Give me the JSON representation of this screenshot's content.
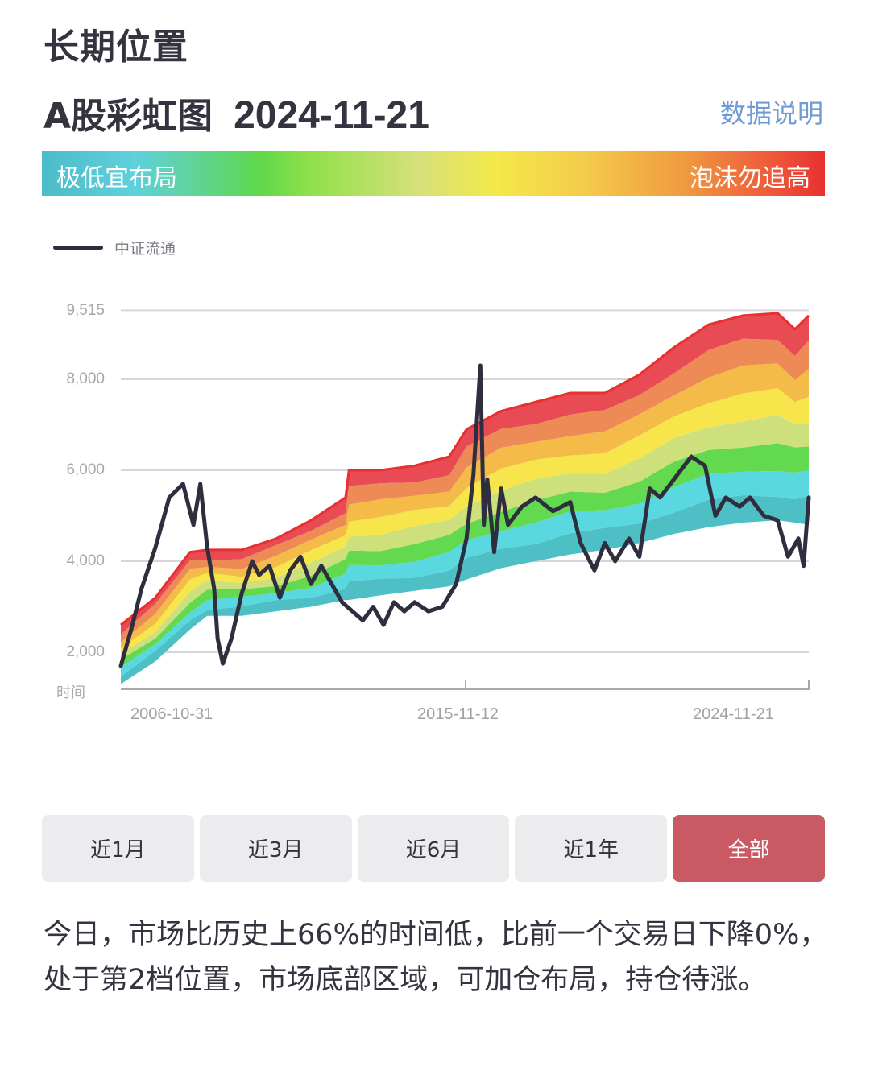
{
  "header": {
    "title": "长期位置",
    "subtitle": "A股彩虹图",
    "date": "2024-11-21",
    "data_link": "数据说明"
  },
  "gradient_bar": {
    "low_label": "极低宜布局",
    "high_label": "泡沫勿追高"
  },
  "legend": {
    "series_name": "中证流通",
    "line_color": "#2f2e3f"
  },
  "axis": {
    "y_ticks": [
      "9,515",
      "8,000",
      "6,000",
      "4,000",
      "2,000"
    ],
    "y_name": "时间",
    "x_ticks": [
      "2006-10-31",
      "2015-11-12",
      "2024-11-21"
    ]
  },
  "range_buttons": [
    {
      "label": "近1月",
      "active": false
    },
    {
      "label": "近3月",
      "active": false
    },
    {
      "label": "近6月",
      "active": false
    },
    {
      "label": "近1年",
      "active": false
    },
    {
      "label": "全部",
      "active": true
    }
  ],
  "summary": "今日，市场比历史上66%的时间低，比前一个交易日下降0%，处于第2档位置，市场底部区域，可加仓布局，持仓待涨。",
  "chart_data": {
    "type": "area",
    "title": "A股彩虹图 2024-11-21",
    "xlabel": "时间",
    "ylabel": "",
    "ylim": [
      1170,
      9515
    ],
    "y_ticks": [
      2000,
      4000,
      6000,
      8000,
      9515
    ],
    "x_tick_labels": [
      "2006-10-31",
      "2015-11-12",
      "2024-11-21"
    ],
    "x_range": [
      2005.0,
      2024.9
    ],
    "grid": true,
    "legend_position": "top-left",
    "band_colors": [
      "#4fbfc6",
      "#5ad8e0",
      "#62d94e",
      "#cde07c",
      "#f6e64c",
      "#f4bb48",
      "#ee8a56",
      "#e94b55"
    ],
    "series": [
      {
        "name": "中证流通",
        "x": [
          2005.0,
          2005.3,
          2005.6,
          2006.0,
          2006.4,
          2006.8,
          2007.1,
          2007.3,
          2007.5,
          2007.7,
          2007.8,
          2007.95,
          2008.2,
          2008.5,
          2008.8,
          2009.0,
          2009.3,
          2009.6,
          2009.9,
          2010.2,
          2010.5,
          2010.8,
          2011.1,
          2011.4,
          2011.7,
          2012.0,
          2012.3,
          2012.6,
          2012.9,
          2013.2,
          2013.5,
          2013.9,
          2014.3,
          2014.7,
          2015.0,
          2015.2,
          2015.4,
          2015.5,
          2015.6,
          2015.8,
          2016.0,
          2016.2,
          2016.6,
          2017.0,
          2017.5,
          2018.0,
          2018.3,
          2018.7,
          2019.0,
          2019.3,
          2019.7,
          2020.0,
          2020.3,
          2020.6,
          2021.0,
          2021.5,
          2021.9,
          2022.2,
          2022.5,
          2022.9,
          2023.2,
          2023.6,
          2024.0,
          2024.3,
          2024.6,
          2024.75,
          2024.9
        ],
        "y": [
          1700,
          2500,
          3400,
          4300,
          5400,
          5700,
          4800,
          5700,
          4300,
          3400,
          2300,
          1750,
          2300,
          3300,
          4000,
          3700,
          3900,
          3200,
          3800,
          4100,
          3500,
          3900,
          3500,
          3100,
          2900,
          2700,
          3000,
          2600,
          3100,
          2900,
          3100,
          2900,
          3000,
          3500,
          4500,
          5900,
          8300,
          4800,
          5800,
          4200,
          5600,
          4800,
          5200,
          5400,
          5100,
          5300,
          4400,
          3800,
          4400,
          4000,
          4500,
          4100,
          5600,
          5400,
          5800,
          6300,
          6100,
          5000,
          5400,
          5200,
          5400,
          5000,
          4900,
          4100,
          4500,
          3900,
          5400
        ]
      },
      {
        "name": "band_boundaries",
        "x": [
          2005.0,
          2006.0,
          2007.0,
          2007.5,
          2008.5,
          2009.5,
          2010.5,
          2011.5,
          2011.6,
          2012.5,
          2013.5,
          2014.5,
          2015.0,
          2016.0,
          2017.0,
          2018.0,
          2019.0,
          2020.0,
          2021.0,
          2022.0,
          2023.0,
          2024.0,
          2024.5,
          2024.9
        ],
        "lower": [
          1300,
          1800,
          2500,
          2800,
          2800,
          2900,
          3000,
          3150,
          3150,
          3250,
          3350,
          3450,
          3600,
          3850,
          4000,
          4150,
          4250,
          4400,
          4600,
          4750,
          4850,
          4900,
          4850,
          4800
        ],
        "upper": [
          2600,
          3200,
          4200,
          4250,
          4250,
          4500,
          4900,
          5400,
          6000,
          6000,
          6100,
          6300,
          6900,
          7300,
          7500,
          7700,
          7700,
          8100,
          8700,
          9200,
          9400,
          9450,
          9100,
          9400
        ]
      }
    ]
  }
}
